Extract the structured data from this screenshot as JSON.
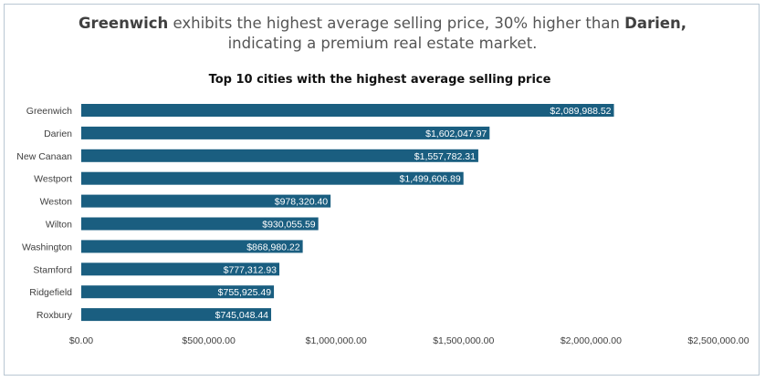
{
  "headline": {
    "part1_bold": "Greenwich",
    "part2": " exhibits the highest average selling price, 30% higher than ",
    "part3_bold": "Darien,",
    "part4": " indicating a premium real estate market."
  },
  "colors": {
    "bar": "#1a5e80",
    "bar_label": "#ffffff",
    "axis_text": "#404040",
    "frame": "#b9c7d3"
  },
  "chart_data": {
    "type": "bar",
    "orientation": "horizontal",
    "title": "Top 10 cities with the highest average selling price",
    "xlabel": "",
    "ylabel": "",
    "xlim": [
      0,
      2500000
    ],
    "grid": false,
    "categories": [
      "Greenwich",
      "Darien",
      "New Canaan",
      "Westport",
      "Weston",
      "Wilton",
      "Washington",
      "Stamford",
      "Ridgefield",
      "Roxbury"
    ],
    "values": [
      2089988.52,
      1602047.97,
      1557782.31,
      1499606.89,
      978320.4,
      930055.59,
      868980.22,
      777312.93,
      755925.49,
      745048.44
    ],
    "data_labels": [
      "$2,089,988.52",
      "$1,602,047.97",
      "$1,557,782.31",
      "$1,499,606.89",
      "$978,320.40",
      "$930,055.59",
      "$868,980.22",
      "$777,312.93",
      "$755,925.49",
      "$745,048.44"
    ],
    "x_ticks": [
      0,
      500000,
      1000000,
      1500000,
      2000000,
      2500000
    ],
    "x_tick_labels": [
      "$0.00",
      "$500,000.00",
      "$1,000,000.00",
      "$1,500,000.00",
      "$2,000,000.00",
      "$2,500,000.00"
    ]
  }
}
